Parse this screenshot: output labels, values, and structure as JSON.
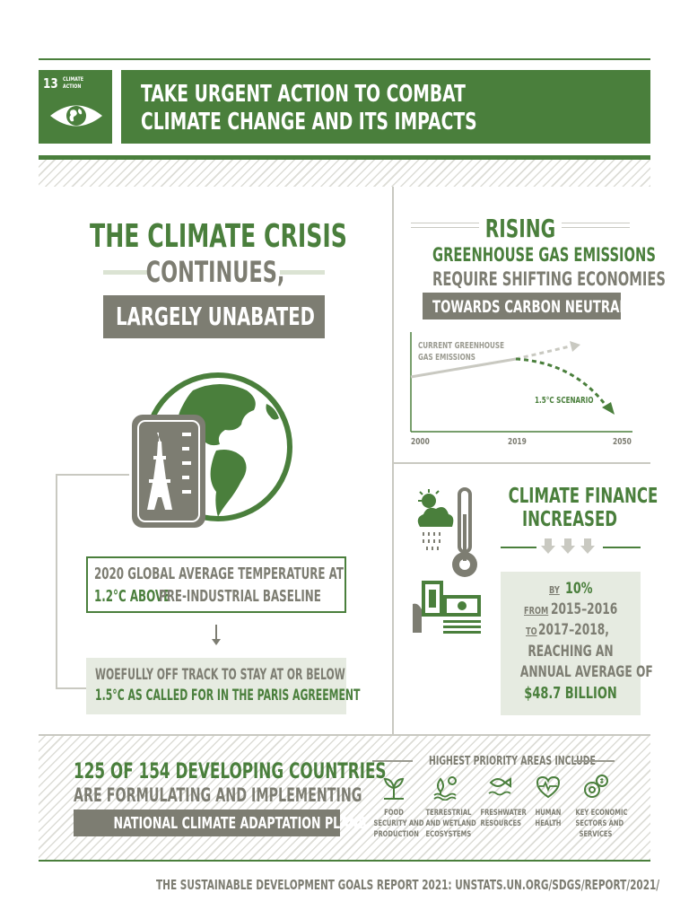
{
  "goal": {
    "number": "13",
    "label_line1": "CLIMATE",
    "label_line2": "ACTION",
    "title_line1": "TAKE URGENT ACTION TO COMBAT",
    "title_line2": "CLIMATE CHANGE AND ITS IMPACTS"
  },
  "crisis": {
    "line1": "THE CLIMATE CRISIS",
    "line2": "CONTINUES,",
    "line3": "LARGELY UNABATED",
    "temp_line1": "2020 GLOBAL AVERAGE  TEMPERATURE AT",
    "temp_bold": "1.2°C ABOVE",
    "temp_rest": " PRE-INDUSTRIAL BASELINE",
    "track_line1": "WOEFULLY OFF TRACK TO STAY AT OR BELOW",
    "track_line2": "1.5°C AS CALLED FOR IN THE PARIS AGREEMENT"
  },
  "emissions": {
    "heading": "RISING",
    "line1": "GREENHOUSE GAS EMISSIONS",
    "line2": "REQUIRE SHIFTING ECONOMIES",
    "line3": "TOWARDS CARBON NEUTRALITY",
    "chart_data": {
      "type": "line",
      "x_ticks": [
        "2000",
        "2019",
        "2050"
      ],
      "annotations": [
        "CURRENT GREENHOUSE GAS EMISSIONS",
        "1.5°C SCENARIO"
      ],
      "label_current_1": "CURRENT GREENHOUSE",
      "label_current_2": "GAS EMISSIONS",
      "label_scenario": "1.5°C SCENARIO",
      "colors": {
        "current": "#c9c9c1",
        "scenario": "#4a7f3c",
        "axis": "#4a7f3c"
      }
    }
  },
  "finance": {
    "line1": "CLIMATE FINANCE",
    "line2": "INCREASED",
    "by": "BY",
    "by_value": "10%",
    "from": "FROM",
    "from_value": "2015–2016",
    "to": "TO",
    "to_value": "2017–2018,",
    "reach1": "REACHING AN",
    "reach2": "ANNUAL AVERAGE OF",
    "amount": "$48.7 BILLION"
  },
  "adaptation": {
    "line1": "125 OF 154 DEVELOPING COUNTRIES",
    "line2": "ARE FORMULATING AND IMPLEMENTING",
    "line3": "NATIONAL CLIMATE ADAPTATION PLANS",
    "priority_heading": "HIGHEST PRIORITY AREAS INCLUDE",
    "areas": [
      {
        "icon": "food-plant-icon",
        "l1": "FOOD",
        "l2": "SECURITY AND",
        "l3": "PRODUCTION"
      },
      {
        "icon": "wetland-tree-icon",
        "l1": "TERRESTRIAL",
        "l2": "AND WETLAND",
        "l3": "ECOSYSTEMS"
      },
      {
        "icon": "fish-water-icon",
        "l1": "FRESHWATER",
        "l2": "RESOURCES",
        "l3": ""
      },
      {
        "icon": "heart-pulse-icon",
        "l1": "HUMAN",
        "l2": "HEALTH",
        "l3": ""
      },
      {
        "icon": "economic-gear-icon",
        "l1": "KEY ECONOMIC",
        "l2": "SECTORS AND",
        "l3": "SERVICES"
      }
    ]
  },
  "footer": "THE SUSTAINABLE DEVELOPMENT GOALS REPORT 2021: UNSTATS.UN.ORG/SDGS/REPORT/2021/",
  "colors": {
    "green": "#4a7f3c",
    "gray": "#7d7d72",
    "light": "#e6ebe1"
  }
}
